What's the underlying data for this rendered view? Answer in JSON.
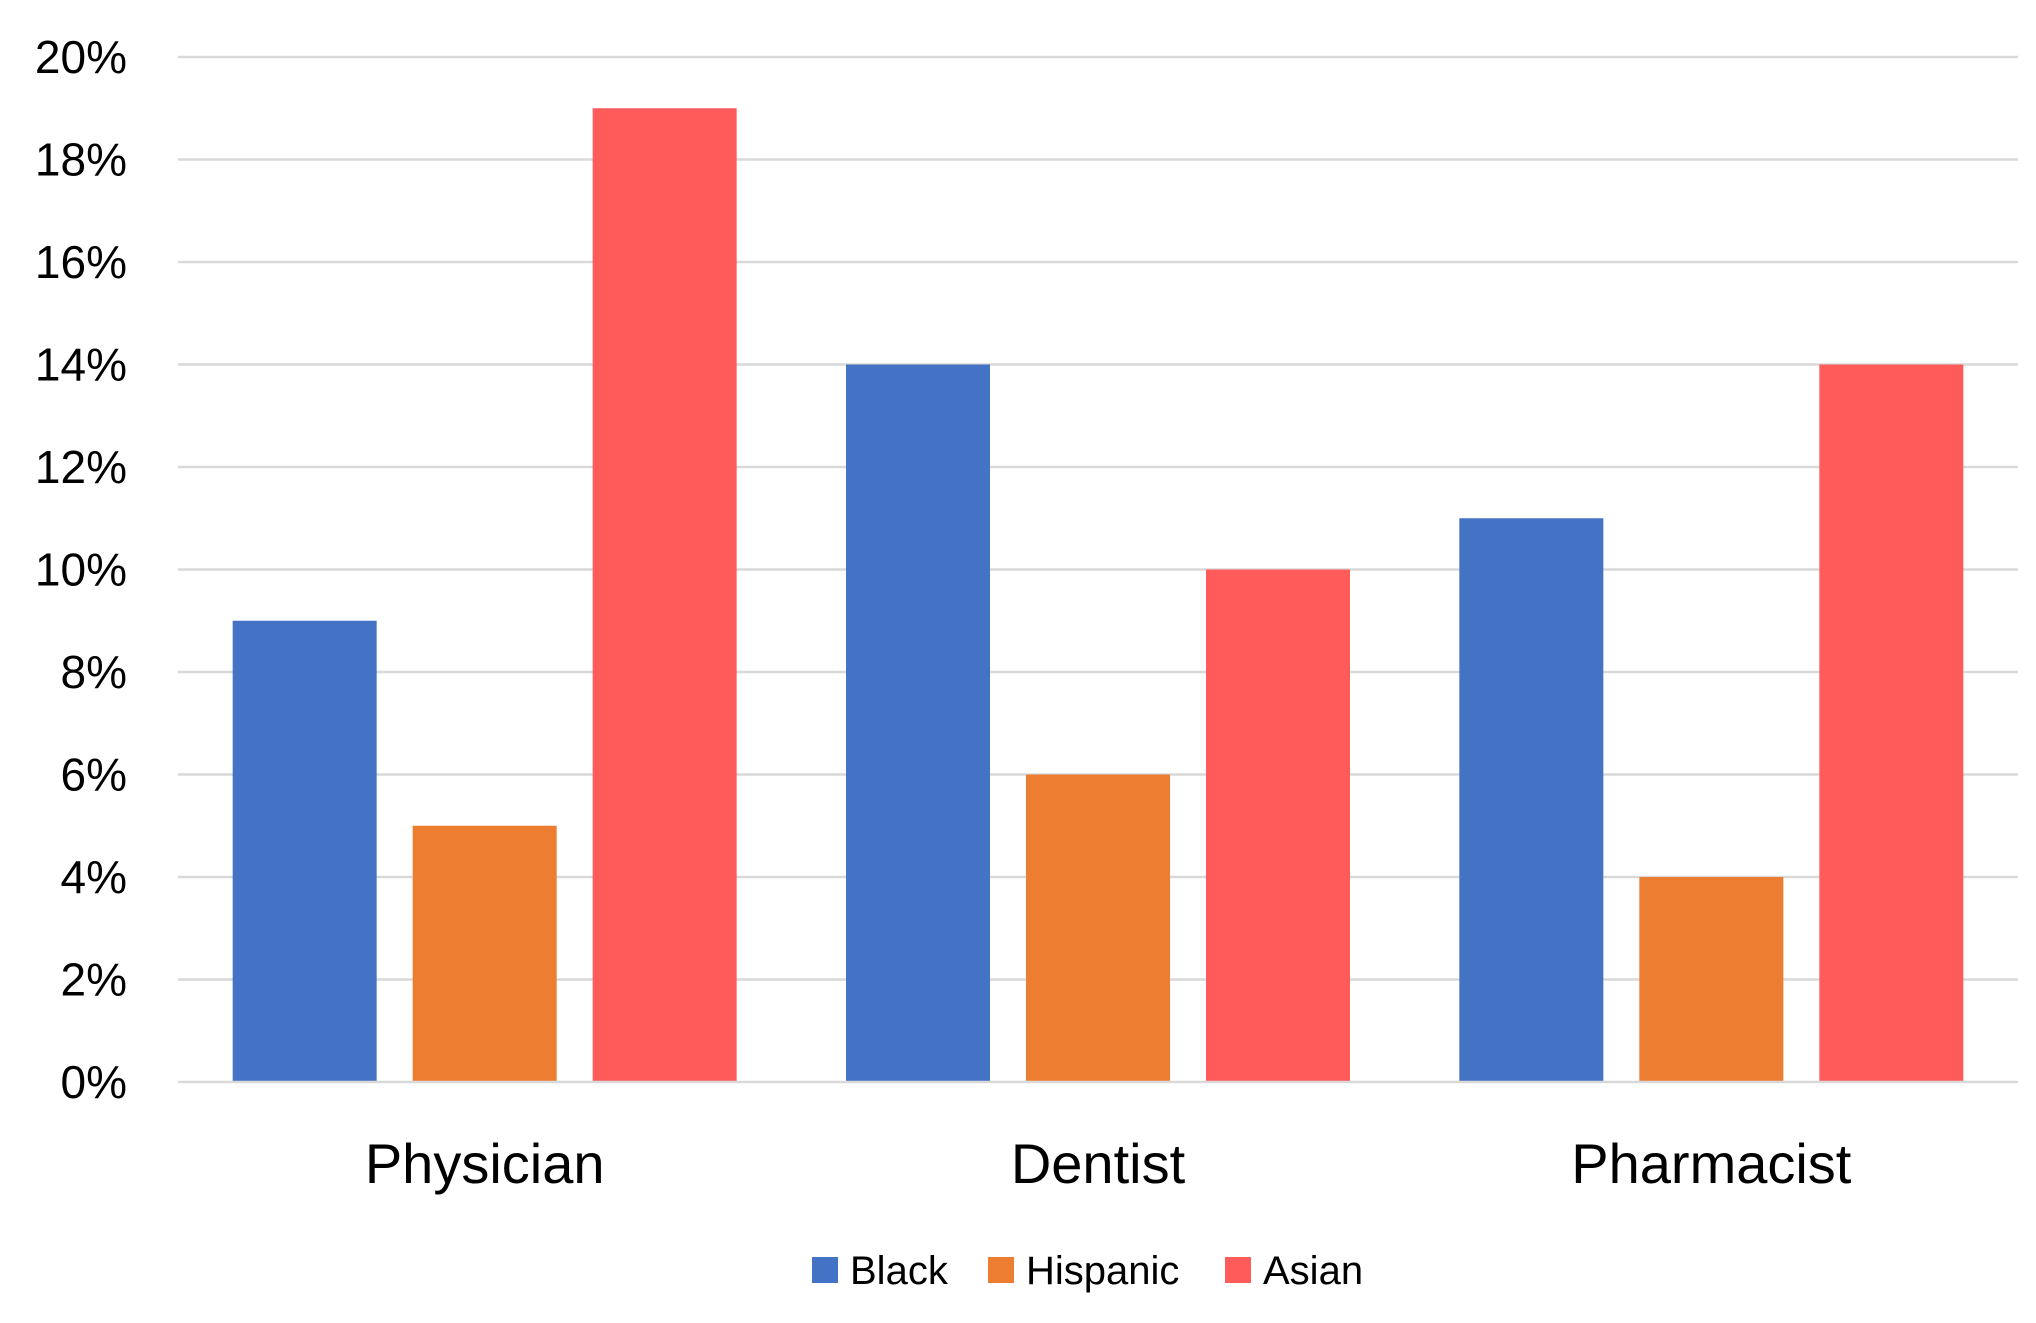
{
  "chart_data": {
    "type": "bar",
    "categories": [
      "Physician",
      "Dentist",
      "Pharmacist"
    ],
    "series": [
      {
        "name": "Black",
        "color": "#4472C4",
        "values": [
          9,
          14,
          11
        ]
      },
      {
        "name": "Hispanic",
        "color": "#ED7D31",
        "values": [
          5,
          6,
          4
        ]
      },
      {
        "name": "Asian",
        "color": "#FF5B5B",
        "values": [
          19,
          10,
          14
        ]
      }
    ],
    "ylim": [
      0,
      20
    ],
    "y_tick_step": 2,
    "y_tick_labels": [
      "0%",
      "2%",
      "4%",
      "6%",
      "8%",
      "10%",
      "12%",
      "14%",
      "16%",
      "18%",
      "20%"
    ],
    "grid": true,
    "legend_position": "bottom"
  }
}
